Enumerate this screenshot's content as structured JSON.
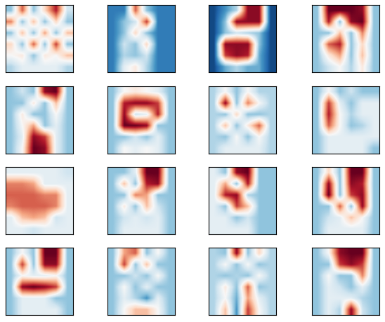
{
  "chart_data": [
    {
      "type": "heatmap",
      "color": "RdBu_r",
      "clim": [
        -1,
        1
      ],
      "tick_labels": false,
      "cells": [
        [
          -0.4,
          0.6,
          -0.4,
          0.2,
          0.8,
          -0.2
        ],
        [
          0.5,
          -0.4,
          0.3,
          -0.4,
          0.2,
          -0.4
        ],
        [
          -0.4,
          0.3,
          -0.4,
          0.4,
          -0.4,
          0.3
        ],
        [
          0.2,
          -0.4,
          0.6,
          -0.4,
          0.7,
          -0.4
        ],
        [
          0.0,
          0.1,
          -0.4,
          0.1,
          0.0,
          0.3
        ],
        [
          -0.3,
          -0.1,
          -0.1,
          -0.1,
          -0.1,
          -0.3
        ]
      ]
    },
    {
      "type": "heatmap",
      "color": "RdBu_r",
      "clim": [
        -1,
        1
      ],
      "tick_labels": false,
      "cells": [
        [
          -0.7,
          -0.7,
          0.6,
          -0.4,
          -0.7,
          -0.7
        ],
        [
          -0.7,
          -0.4,
          -0.2,
          0.7,
          -0.7,
          -0.7
        ],
        [
          -0.7,
          -0.4,
          0.2,
          -0.4,
          -0.7,
          -0.7
        ],
        [
          -0.7,
          -0.2,
          -0.4,
          0.2,
          -0.7,
          -0.7
        ],
        [
          -0.7,
          -0.3,
          -0.4,
          -0.2,
          -0.7,
          -0.7
        ],
        [
          -0.7,
          -0.1,
          0.1,
          -0.3,
          -0.7,
          -0.7
        ]
      ]
    },
    {
      "type": "heatmap",
      "color": "RdBu_r",
      "clim": [
        -1,
        1
      ],
      "tick_labels": false,
      "cells": [
        [
          -0.9,
          -0.6,
          -0.3,
          0.9,
          0.9,
          -0.9
        ],
        [
          -0.9,
          -0.4,
          0.9,
          0.9,
          0.9,
          -0.9
        ],
        [
          -0.9,
          -0.4,
          -0.2,
          -0.3,
          -0.4,
          -0.9
        ],
        [
          -0.9,
          0.9,
          0.9,
          0.9,
          -0.4,
          -0.9
        ],
        [
          -0.9,
          0.7,
          0.9,
          0.8,
          -0.5,
          -0.9
        ],
        [
          -0.9,
          -0.5,
          -0.3,
          -0.5,
          -0.5,
          -0.9
        ]
      ]
    },
    {
      "type": "heatmap",
      "color": "RdBu_r",
      "clim": [
        -1,
        1
      ],
      "tick_labels": false,
      "cells": [
        [
          -0.4,
          1,
          1,
          1,
          0.9,
          -0.4
        ],
        [
          -0.4,
          0.8,
          -0.4,
          0.9,
          1,
          -0.4
        ],
        [
          -0.4,
          -0.4,
          0.3,
          -0.4,
          0.5,
          -0.4
        ],
        [
          -0.4,
          0.6,
          0.8,
          -0.4,
          0.2,
          -0.4
        ],
        [
          -0.4,
          0.1,
          0.4,
          -0.4,
          0.3,
          -0.4
        ],
        [
          -0.4,
          -0.2,
          0.0,
          -0.3,
          0.1,
          -0.4
        ]
      ]
    },
    {
      "type": "heatmap",
      "color": "RdBu_r",
      "clim": [
        -1,
        1
      ],
      "tick_labels": false,
      "cells": [
        [
          -0.4,
          -0.2,
          -0.4,
          0.9,
          1,
          -0.4
        ],
        [
          -0.4,
          -0.4,
          0.1,
          -0.4,
          0.3,
          -0.4
        ],
        [
          -0.4,
          0.1,
          -0.4,
          -0.4,
          0.0,
          -0.4
        ],
        [
          -0.4,
          0.0,
          0.4,
          -0.4,
          -0.1,
          -0.4
        ],
        [
          -0.4,
          -0.1,
          0.9,
          0.7,
          -0.1,
          -0.4
        ],
        [
          -0.4,
          0.0,
          1,
          0.9,
          -0.1,
          -0.4
        ]
      ]
    },
    {
      "type": "heatmap",
      "color": "RdBu_r",
      "clim": [
        -1,
        1
      ],
      "tick_labels": false,
      "cells": [
        [
          -0.4,
          0.0,
          0.1,
          0.0,
          -0.1,
          -0.4
        ],
        [
          -0.4,
          0.8,
          0.9,
          0.9,
          0.7,
          -0.4
        ],
        [
          -0.4,
          0.9,
          -0.2,
          -0.1,
          0.8,
          -0.4
        ],
        [
          -0.4,
          1,
          1,
          0.9,
          -0.4,
          -0.4
        ],
        [
          -0.4,
          -0.4,
          -0.2,
          -0.4,
          -0.1,
          -0.4
        ],
        [
          -0.4,
          0.0,
          -0.1,
          0.0,
          -0.1,
          -0.4
        ]
      ]
    },
    {
      "type": "heatmap",
      "color": "RdBu_r",
      "clim": [
        -1,
        1
      ],
      "tick_labels": false,
      "cells": [
        [
          -0.3,
          0.0,
          -0.4,
          0.0,
          -0.3,
          -0.3
        ],
        [
          -0.3,
          0.9,
          -0.4,
          0.5,
          0.0,
          -0.3
        ],
        [
          -0.3,
          -0.4,
          0.2,
          -0.4,
          -0.4,
          -0.3
        ],
        [
          -0.3,
          0.3,
          -0.4,
          0.1,
          0.6,
          -0.3
        ],
        [
          -0.3,
          -0.4,
          0.0,
          -0.4,
          0.0,
          -0.3
        ],
        [
          -0.3,
          -0.1,
          -0.1,
          -0.1,
          -0.1,
          -0.3
        ]
      ]
    },
    {
      "type": "heatmap",
      "color": "RdBu_r",
      "clim": [
        -1,
        1
      ],
      "tick_labels": false,
      "cells": [
        [
          -0.4,
          0.0,
          -0.4,
          -0.2,
          -0.4,
          -0.4
        ],
        [
          -0.4,
          0.7,
          -0.1,
          -0.4,
          -0.1,
          -0.1
        ],
        [
          -0.4,
          0.8,
          0.0,
          -0.3,
          -0.1,
          -0.1
        ],
        [
          -0.4,
          0.6,
          0.0,
          -0.4,
          -0.3,
          -0.1
        ],
        [
          -0.4,
          -0.1,
          -0.1,
          -0.1,
          -0.1,
          -0.1
        ],
        [
          -0.4,
          -0.1,
          -0.1,
          -0.1,
          -0.1,
          -0.4
        ]
      ]
    },
    {
      "type": "heatmap",
      "color": "RdBu_r",
      "clim": [
        -1,
        1
      ],
      "tick_labels": false,
      "cells": [
        [
          -0.1,
          -0.1,
          -0.1,
          -0.1,
          -0.1,
          -0.2
        ],
        [
          0.5,
          0.5,
          0.4,
          -0.1,
          -0.1,
          -0.1
        ],
        [
          0.6,
          0.6,
          0.6,
          0.5,
          0.5,
          -0.1
        ],
        [
          0.5,
          0.6,
          0.6,
          0.6,
          0.5,
          -0.1
        ],
        [
          -0.1,
          0.3,
          0.4,
          0.3,
          -0.2,
          -0.1
        ],
        [
          -0.1,
          -0.1,
          -0.2,
          -0.1,
          -0.1,
          -0.1
        ]
      ]
    },
    {
      "type": "heatmap",
      "color": "RdBu_r",
      "clim": [
        -1,
        1
      ],
      "tick_labels": false,
      "cells": [
        [
          -0.4,
          -0.4,
          -0.1,
          1,
          1,
          -0.4
        ],
        [
          -0.4,
          0.3,
          -0.4,
          0.8,
          0.9,
          -0.4
        ],
        [
          -0.4,
          -0.4,
          0.5,
          0.4,
          -0.4,
          -0.4
        ],
        [
          -0.4,
          0.1,
          -0.4,
          0.3,
          -0.2,
          -0.4
        ],
        [
          -0.4,
          -0.2,
          -0.1,
          -0.2,
          -0.1,
          -0.4
        ],
        [
          -0.4,
          -0.1,
          -0.1,
          -0.1,
          -0.1,
          -0.4
        ]
      ]
    },
    {
      "type": "heatmap",
      "color": "RdBu_r",
      "clim": [
        -1,
        1
      ],
      "tick_labels": false,
      "cells": [
        [
          -0.1,
          -0.4,
          0.9,
          1,
          -0.4,
          -0.4
        ],
        [
          -0.1,
          0.4,
          -0.4,
          0.8,
          -0.4,
          -0.4
        ],
        [
          -0.1,
          0.8,
          0.9,
          -0.3,
          -0.4,
          -0.4
        ],
        [
          -0.1,
          -0.4,
          0.7,
          0.3,
          -0.4,
          -0.4
        ],
        [
          -0.1,
          -0.1,
          -0.4,
          -0.2,
          -0.4,
          -0.4
        ],
        [
          -0.1,
          -0.1,
          -0.1,
          -0.1,
          -0.4,
          -0.4
        ]
      ]
    },
    {
      "type": "heatmap",
      "color": "RdBu_r",
      "clim": [
        -1,
        1
      ],
      "tick_labels": false,
      "cells": [
        [
          -0.4,
          0.2,
          -0.4,
          1,
          1,
          -0.4
        ],
        [
          -0.4,
          0.9,
          -0.4,
          0.9,
          0.8,
          -0.4
        ],
        [
          -0.4,
          1,
          -0.4,
          0.7,
          0.9,
          -0.4
        ],
        [
          -0.4,
          -0.4,
          0.6,
          -0.4,
          0.9,
          -0.4
        ],
        [
          -0.4,
          -0.2,
          -0.1,
          0.3,
          0.0,
          -0.4
        ],
        [
          -0.4,
          -0.1,
          -0.1,
          -0.1,
          -0.1,
          -0.4
        ]
      ]
    },
    {
      "type": "heatmap",
      "color": "RdBu_r",
      "clim": [
        -1,
        1
      ],
      "tick_labels": false,
      "cells": [
        [
          -0.4,
          0.0,
          -0.4,
          1,
          1,
          -0.4
        ],
        [
          -0.4,
          0.7,
          -0.4,
          0.9,
          0.9,
          -0.4
        ],
        [
          -0.4,
          0.0,
          -0.1,
          -0.1,
          0.0,
          -0.4
        ],
        [
          -0.4,
          0.9,
          1,
          0.9,
          0.7,
          -0.4
        ],
        [
          -0.4,
          -0.1,
          -0.1,
          -0.1,
          -0.4,
          -0.4
        ],
        [
          -0.4,
          -0.1,
          -0.1,
          -0.1,
          -0.1,
          -0.4
        ]
      ]
    },
    {
      "type": "heatmap",
      "color": "RdBu_r",
      "clim": [
        -1,
        1
      ],
      "tick_labels": false,
      "cells": [
        [
          -0.4,
          0.4,
          0.6,
          -0.4,
          0.0,
          -0.4
        ],
        [
          -0.4,
          0.7,
          -0.4,
          0.3,
          -0.4,
          -0.4
        ],
        [
          -0.4,
          -0.4,
          -0.2,
          -0.4,
          0.0,
          -0.4
        ],
        [
          -0.4,
          0.0,
          -0.4,
          -0.1,
          -0.4,
          -0.4
        ],
        [
          -0.4,
          -0.1,
          -0.3,
          -0.6,
          -0.1,
          -0.4
        ],
        [
          -0.4,
          0.0,
          0.3,
          0.3,
          0.0,
          -0.4
        ]
      ]
    },
    {
      "type": "heatmap",
      "color": "RdBu_r",
      "clim": [
        -1,
        1
      ],
      "tick_labels": false,
      "cells": [
        [
          -0.3,
          -0.4,
          0.9,
          -0.4,
          0.2,
          -0.3
        ],
        [
          -0.3,
          0.0,
          -0.4,
          0.0,
          -0.4,
          -0.3
        ],
        [
          -0.3,
          -0.4,
          -0.3,
          -0.4,
          0.0,
          -0.3
        ],
        [
          -0.3,
          0.1,
          -0.4,
          0.6,
          -0.4,
          -0.3
        ],
        [
          -0.3,
          0.0,
          -0.5,
          0.4,
          -0.1,
          -0.3
        ],
        [
          -0.3,
          0.3,
          -0.6,
          0.7,
          0.0,
          -0.3
        ]
      ]
    },
    {
      "type": "heatmap",
      "color": "RdBu_r",
      "clim": [
        -1,
        1
      ],
      "tick_labels": false,
      "cells": [
        [
          -0.4,
          0.0,
          0.9,
          1,
          1,
          -0.4
        ],
        [
          -0.4,
          -0.4,
          0.7,
          0.9,
          0.7,
          -0.4
        ],
        [
          -0.4,
          0.0,
          -0.4,
          -0.4,
          0.5,
          -0.4
        ],
        [
          -0.4,
          -0.1,
          -0.2,
          -0.4,
          -0.1,
          -0.4
        ],
        [
          -0.4,
          -0.1,
          -0.1,
          -0.1,
          -0.3,
          -0.4
        ],
        [
          -0.4,
          -0.1,
          -0.3,
          0.9,
          -0.2,
          -0.4
        ]
      ]
    }
  ]
}
